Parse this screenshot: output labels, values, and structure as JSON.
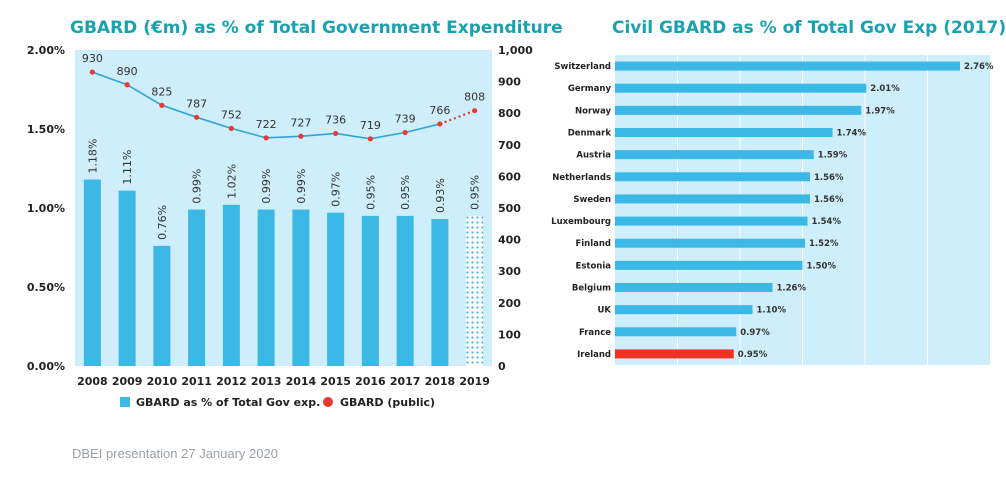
{
  "charts": {
    "left_title": "GBARD (€m) as % of Total Government Expenditure",
    "right_title": "Civil GBARD as % of Total Gov Exp (2017)"
  },
  "footer": "DBEI presentation 27 January 2020",
  "colors": {
    "title": "#1aa1b0",
    "bar": "#3bb8e6",
    "plot_bg": "#cdeefa",
    "line": "#2fa4d8",
    "dot": "#e83a2e",
    "highlight": "#ef3224"
  },
  "chart_data": [
    {
      "type": "bar",
      "title": "GBARD (€m) as % of Total Government Expenditure",
      "categories": [
        "2008",
        "2009",
        "2010",
        "2011",
        "2012",
        "2013",
        "2014",
        "2015",
        "2016",
        "2017",
        "2018",
        "2019"
      ],
      "series": [
        {
          "name": "GBARD as % of Total Gov exp.",
          "type": "bar",
          "axis": "left",
          "values": [
            1.18,
            1.11,
            0.76,
            0.99,
            1.02,
            0.99,
            0.99,
            0.97,
            0.95,
            0.95,
            0.93,
            0.95
          ],
          "labels": [
            "1.18%",
            "1.11%",
            "0.76%",
            "0.99%",
            "1.02%",
            "0.99%",
            "0.99%",
            "0.97%",
            "0.95%",
            "0.95%",
            "0.93%",
            "0.95%"
          ],
          "estimated_last": true
        },
        {
          "name": "GBARD (public)",
          "type": "line",
          "axis": "right",
          "values": [
            930,
            890,
            825,
            787,
            752,
            722,
            727,
            736,
            719,
            739,
            766,
            808
          ],
          "dotted_last": true
        }
      ],
      "left_axis": {
        "ylim": [
          0,
          2.0
        ],
        "ticks": [
          "0.00%",
          "0.50%",
          "1.00%",
          "1.50%",
          "2.00%"
        ]
      },
      "right_axis": {
        "ylim": [
          0,
          1000
        ],
        "ticks": [
          "0",
          "100",
          "200",
          "300",
          "400",
          "500",
          "600",
          "700",
          "800",
          "900",
          "1,000"
        ]
      },
      "legend_position": "bottom"
    },
    {
      "type": "bar",
      "orientation": "horizontal",
      "title": "Civil GBARD as % of Total Gov Exp (2017)",
      "categories": [
        "Switzerland",
        "Germany",
        "Norway",
        "Denmark",
        "Austria",
        "Netherlands",
        "Sweden",
        "Luxembourg",
        "Finland",
        "Estonia",
        "Belgium",
        "UK",
        "France",
        "Ireland"
      ],
      "values": [
        2.76,
        2.01,
        1.97,
        1.74,
        1.59,
        1.56,
        1.56,
        1.54,
        1.52,
        1.5,
        1.26,
        1.1,
        0.97,
        0.95
      ],
      "labels": [
        "2.76%",
        "2.01%",
        "1.97%",
        "1.74%",
        "1.59%",
        "1.56%",
        "1.56%",
        "1.54%",
        "1.52%",
        "1.50%",
        "1.26%",
        "1.10%",
        "0.97%",
        "0.95%"
      ],
      "highlight": "Ireland",
      "xlim": [
        0,
        3.0
      ],
      "grid": true
    }
  ]
}
